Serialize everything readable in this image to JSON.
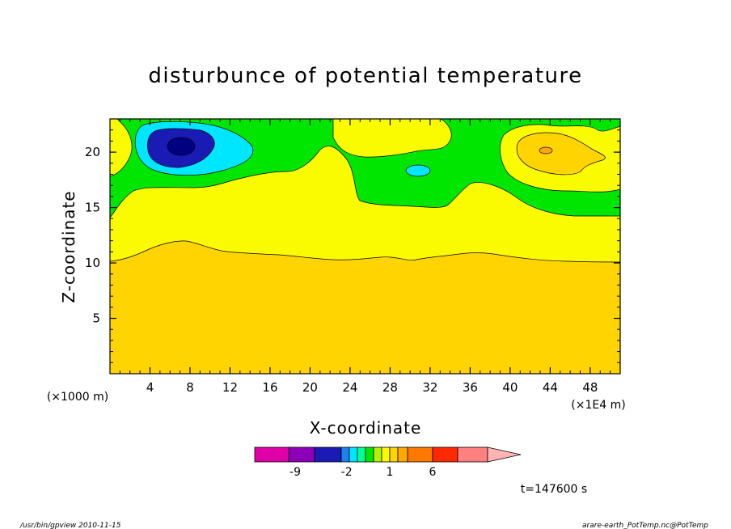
{
  "chart_data": {
    "type": "heatmap",
    "title": "disturbunce of potential temperature",
    "xlabel": "X-coordinate",
    "ylabel": "Z-coordinate",
    "x_units_left": "(×1000 m)",
    "x_units_right": "(×1E4 m)",
    "xlim": [
      0,
      51
    ],
    "ylim": [
      0,
      23
    ],
    "xticks": [
      "4",
      "8",
      "12",
      "16",
      "20",
      "24",
      "28",
      "32",
      "36",
      "40",
      "44",
      "48"
    ],
    "yticks": [
      "5",
      "10",
      "15",
      "20"
    ],
    "xtick_values": [
      4,
      8,
      12,
      16,
      20,
      24,
      28,
      32,
      36,
      40,
      44,
      48
    ],
    "ytick_values": [
      5,
      10,
      15,
      20
    ],
    "time_label": "t=147600 s",
    "colorbar": {
      "labels": [
        "-9",
        "-2",
        "1",
        "6"
      ],
      "label_positions": [
        -9,
        -2,
        1,
        6
      ],
      "levels": [
        -14,
        -10,
        -6,
        -3,
        -1.5,
        -1,
        -0.5,
        0,
        0.5,
        1,
        2,
        3,
        6,
        9,
        12,
        15
      ],
      "colors": [
        "#e000a8",
        "#8c00b8",
        "#1a1ab4",
        "#2080f0",
        "#00e6ff",
        "#00ff9a",
        "#00e600",
        "#b4f000",
        "#fafa00",
        "#ffd400",
        "#ffa800",
        "#ff7800",
        "#ff2800",
        "#ff8080",
        "#ffb4b4"
      ]
    },
    "regions": [
      {
        "name": "base-layer",
        "value_range": [
          0,
          1
        ],
        "color": "#ffd400"
      },
      {
        "name": "middle-layer",
        "value_range": [
          -0.5,
          0
        ],
        "color": "#fafa00"
      },
      {
        "name": "upper-layer",
        "value_range": [
          -1,
          -0.5
        ],
        "color": "#00e600"
      },
      {
        "name": "cold-anomaly-outer",
        "value_range": [
          -3,
          -1
        ],
        "color": "#00e6ff",
        "center": [
          7,
          20.3
        ]
      },
      {
        "name": "cold-anomaly-inner",
        "value_range": [
          -6,
          -3
        ],
        "color": "#1a1ab4",
        "center": [
          7,
          20.3
        ]
      },
      {
        "name": "cold-anomaly-core",
        "value_range": [
          -10,
          -6
        ],
        "color": "#000080",
        "center": [
          7,
          20.3
        ]
      },
      {
        "name": "small-cold-cell",
        "value_range": [
          -3,
          -1
        ],
        "color": "#00e6ff",
        "center": [
          30.5,
          18.3
        ]
      },
      {
        "name": "warm-anomaly",
        "value_range": [
          0,
          1
        ],
        "color": "#ffd400",
        "center": [
          43.5,
          19.8
        ]
      },
      {
        "name": "warm-anomaly-core",
        "value_range": [
          1,
          2
        ],
        "color": "#ffa800",
        "center": [
          43.5,
          20.1
        ]
      }
    ]
  },
  "footer": {
    "left": "/usr/bin/gpview  2010-11-15",
    "right": "arare-earth_PotTemp.nc@PotTemp"
  }
}
